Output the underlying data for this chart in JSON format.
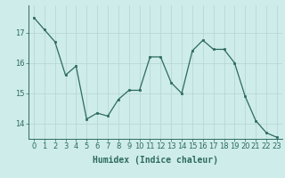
{
  "x": [
    0,
    1,
    2,
    3,
    4,
    5,
    6,
    7,
    8,
    9,
    10,
    11,
    12,
    13,
    14,
    15,
    16,
    17,
    18,
    19,
    20,
    21,
    22,
    23
  ],
  "y": [
    17.5,
    17.1,
    16.7,
    15.6,
    15.9,
    14.15,
    14.35,
    14.25,
    14.8,
    15.1,
    15.1,
    16.2,
    16.2,
    15.35,
    15.0,
    16.4,
    16.75,
    16.45,
    16.45,
    16.0,
    14.9,
    14.1,
    13.7,
    13.55
  ],
  "line_color": "#2d6b5e",
  "marker": "s",
  "marker_size": 1.8,
  "bg_color": "#ceecea",
  "grid_color": "#b8d8d6",
  "xlabel": "Humidex (Indice chaleur)",
  "xlabel_fontsize": 7,
  "tick_fontsize": 6,
  "ylim": [
    13.5,
    17.9
  ],
  "yticks": [
    14,
    15,
    16,
    17
  ],
  "xlim": [
    -0.5,
    23.5
  ]
}
